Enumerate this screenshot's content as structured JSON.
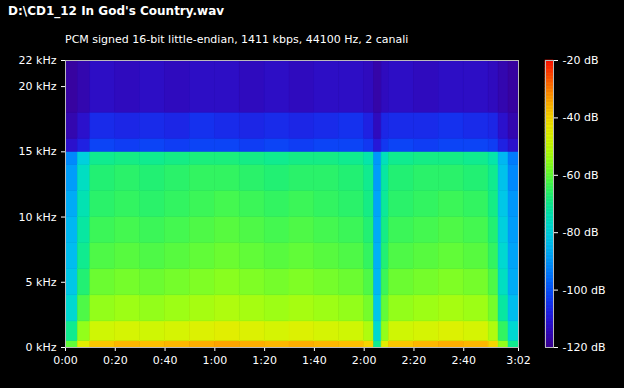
{
  "chart_data": {
    "type": "heatmap",
    "title": "D:\\CD1_12 In God's Country.wav",
    "subtitle": "PCM signed 16-bit little-endian, 1411 kbps, 44100 Hz, 2 canali",
    "x_edges": [
      0,
      5,
      10,
      20,
      30,
      40,
      50,
      60,
      70,
      80,
      90,
      100,
      110,
      120,
      124,
      127,
      130,
      140,
      150,
      160,
      170,
      174,
      178,
      182
    ],
    "y_edges": [
      0,
      0.5,
      2,
      4,
      6,
      8,
      10,
      12,
      14,
      15,
      16,
      18,
      22
    ],
    "cells": [
      [
        -60,
        -45,
        -38,
        -36,
        -37,
        -36,
        -35,
        -34,
        -35,
        -36,
        -35,
        -36,
        -37,
        -40,
        -70,
        -45,
        -38,
        -36,
        -35,
        -36,
        -40,
        -55,
        -70
      ],
      [
        -70,
        -55,
        -48,
        -47,
        -48,
        -47,
        -46,
        -45,
        -46,
        -47,
        -46,
        -47,
        -48,
        -52,
        -78,
        -55,
        -48,
        -47,
        -46,
        -47,
        -52,
        -65,
        -78
      ],
      [
        -78,
        -62,
        -55,
        -54,
        -55,
        -54,
        -53,
        -52,
        -53,
        -54,
        -53,
        -54,
        -55,
        -58,
        -82,
        -60,
        -55,
        -54,
        -53,
        -54,
        -58,
        -72,
        -84
      ],
      [
        -82,
        -67,
        -59,
        -58,
        -59,
        -58,
        -57,
        -56,
        -57,
        -58,
        -57,
        -58,
        -59,
        -62,
        -85,
        -64,
        -59,
        -58,
        -57,
        -58,
        -62,
        -76,
        -87
      ],
      [
        -84,
        -70,
        -62,
        -61,
        -62,
        -61,
        -60,
        -59,
        -60,
        -61,
        -60,
        -61,
        -62,
        -65,
        -86,
        -67,
        -62,
        -61,
        -60,
        -61,
        -65,
        -78,
        -88
      ],
      [
        -85,
        -72,
        -64,
        -63,
        -64,
        -63,
        -62,
        -61,
        -62,
        -63,
        -62,
        -63,
        -64,
        -67,
        -87,
        -69,
        -64,
        -63,
        -62,
        -63,
        -67,
        -80,
        -89
      ],
      [
        -87,
        -74,
        -66,
        -65,
        -66,
        -65,
        -64,
        -63,
        -64,
        -65,
        -64,
        -65,
        -66,
        -69,
        -88,
        -71,
        -66,
        -65,
        -64,
        -65,
        -69,
        -82,
        -90
      ],
      [
        -89,
        -76,
        -67,
        -66,
        -67,
        -66,
        -65,
        -65,
        -66,
        -67,
        -66,
        -66,
        -67,
        -70,
        -89,
        -72,
        -67,
        -66,
        -66,
        -67,
        -70,
        -83,
        -92
      ],
      [
        -92,
        -80,
        -70,
        -69,
        -70,
        -69,
        -68,
        -68,
        -69,
        -70,
        -69,
        -69,
        -70,
        -73,
        -90,
        -75,
        -70,
        -69,
        -69,
        -70,
        -73,
        -85,
        -94
      ],
      [
        -112,
        -108,
        -102,
        -103,
        -102,
        -103,
        -102,
        -102,
        -103,
        -102,
        -103,
        -102,
        -102,
        -104,
        -110,
        -104,
        -102,
        -103,
        -102,
        -102,
        -103,
        -108,
        -112
      ],
      [
        -116,
        -112,
        -106,
        -107,
        -106,
        -107,
        -105,
        -106,
        -107,
        -106,
        -107,
        -106,
        -105,
        -108,
        -114,
        -107,
        -106,
        -106,
        -105,
        -106,
        -107,
        -112,
        -116
      ],
      [
        -118,
        -116,
        -113,
        -114,
        -113,
        -114,
        -113,
        -113,
        -114,
        -113,
        -114,
        -113,
        -113,
        -114,
        -117,
        -114,
        -113,
        -114,
        -113,
        -113,
        -114,
        -116,
        -118
      ]
    ],
    "xlim": [
      0,
      182
    ],
    "ylim": [
      0,
      22
    ],
    "xticks": [
      {
        "value": 0,
        "label": "0:00"
      },
      {
        "value": 20,
        "label": "0:20"
      },
      {
        "value": 40,
        "label": "0:40"
      },
      {
        "value": 60,
        "label": "1:00"
      },
      {
        "value": 80,
        "label": "1:20"
      },
      {
        "value": 100,
        "label": "1:40"
      },
      {
        "value": 120,
        "label": "2:00"
      },
      {
        "value": 140,
        "label": "2:20"
      },
      {
        "value": 160,
        "label": "2:40"
      },
      {
        "value": 182,
        "label": "3:02"
      }
    ],
    "yticks": [
      {
        "value": 0,
        "label": "0 kHz"
      },
      {
        "value": 5,
        "label": "5 kHz"
      },
      {
        "value": 10,
        "label": "10 kHz"
      },
      {
        "value": 15,
        "label": "15 kHz"
      },
      {
        "value": 20,
        "label": "20 kHz"
      },
      {
        "value": 22,
        "label": "22 kHz"
      }
    ],
    "colorbar": {
      "range": [
        -120,
        -20
      ],
      "ticks": [
        {
          "value": -20,
          "label": "-20 dB"
        },
        {
          "value": -40,
          "label": "-40 dB"
        },
        {
          "value": -60,
          "label": "-60 dB"
        },
        {
          "value": -80,
          "label": "-80 dB"
        },
        {
          "value": -100,
          "label": "-100 dB"
        },
        {
          "value": -120,
          "label": "-120 dB"
        }
      ],
      "colors": [
        "#3a0090",
        "#2a10e0",
        "#0050ff",
        "#0098ff",
        "#00d8e8",
        "#00ea90",
        "#60ff30",
        "#c8ff00",
        "#ffe000",
        "#ff8000",
        "#ff1000"
      ]
    }
  }
}
